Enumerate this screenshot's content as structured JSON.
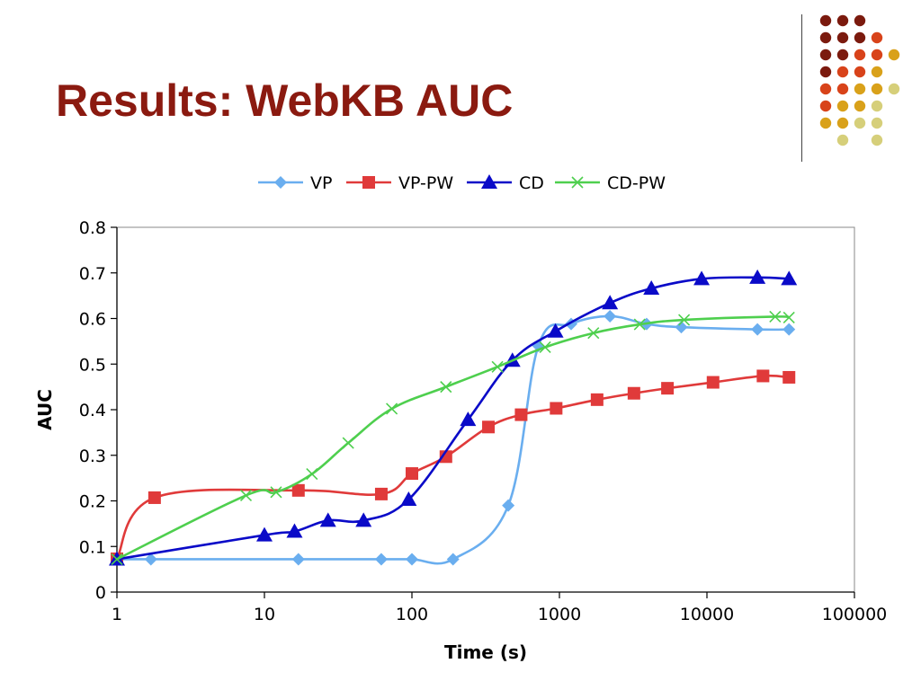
{
  "slide": {
    "title": "Results: WebKB AUC"
  },
  "decoration": {
    "dot_rows": [
      [
        "#7b1a0e",
        "#7b1a0e",
        "#7b1a0e"
      ],
      [
        "#7b1a0e",
        "#7b1a0e",
        "#7b1a0e",
        "#d8431a"
      ],
      [
        "#7b1a0e",
        "#7b1a0e",
        "#d8431a",
        "#d8431a",
        "#d9a11a"
      ],
      [
        "#7b1a0e",
        "#d8431a",
        "#d8431a",
        "#d9a11a"
      ],
      [
        "#d8431a",
        "#d8431a",
        "#d9a11a",
        "#d9a11a",
        "#d6cf7a"
      ],
      [
        "#d8431a",
        "#d9a11a",
        "#d9a11a",
        "#d6cf7a"
      ],
      [
        "#d9a11a",
        "#d9a11a",
        "#d6cf7a",
        "#d6cf7a"
      ],
      [
        "#d6cf7a",
        "#d6cf7a"
      ]
    ]
  },
  "chart_data": {
    "type": "line",
    "title": "",
    "xlabel": "Time (s)",
    "ylabel": "AUC",
    "xscale": "log",
    "xlim": [
      1,
      100000
    ],
    "ylim": [
      0,
      0.8
    ],
    "x_ticks": [
      1,
      10,
      100,
      1000,
      10000,
      100000
    ],
    "x_tick_labels": [
      "1",
      "10",
      "100",
      "1000",
      "10000",
      "100000"
    ],
    "y_ticks": [
      0,
      0.1,
      0.2,
      0.3,
      0.4,
      0.5,
      0.6,
      0.7,
      0.8
    ],
    "y_tick_labels": [
      "0",
      "0.1",
      "0.2",
      "0.3",
      "0.4",
      "0.5",
      "0.6",
      "0.7",
      "0.8"
    ],
    "grid": false,
    "legend_position": "top",
    "series": [
      {
        "name": "VP",
        "color": "#6aaeef",
        "marker": "diamond",
        "points": [
          [
            1,
            0.072
          ],
          [
            1.7,
            0.072
          ],
          [
            17,
            0.072
          ],
          [
            62,
            0.072
          ],
          [
            100,
            0.072
          ],
          [
            190,
            0.072
          ],
          [
            450,
            0.19
          ],
          [
            720,
            0.54
          ],
          [
            1200,
            0.588
          ],
          [
            2200,
            0.605
          ],
          [
            3900,
            0.588
          ],
          [
            6700,
            0.581
          ],
          [
            22000,
            0.576
          ],
          [
            36000,
            0.576
          ]
        ]
      },
      {
        "name": "VP-PW",
        "color": "#e03a3a",
        "marker": "square",
        "points": [
          [
            1,
            0.073
          ],
          [
            1.8,
            0.207
          ],
          [
            17,
            0.223
          ],
          [
            62,
            0.215
          ],
          [
            100,
            0.26
          ],
          [
            170,
            0.297
          ],
          [
            330,
            0.362
          ],
          [
            550,
            0.389
          ],
          [
            950,
            0.403
          ],
          [
            1800,
            0.422
          ],
          [
            3200,
            0.436
          ],
          [
            5400,
            0.447
          ],
          [
            11000,
            0.46
          ],
          [
            24000,
            0.474
          ],
          [
            36000,
            0.471
          ]
        ]
      },
      {
        "name": "CD",
        "color": "#0a0ac8",
        "marker": "triangle",
        "points": [
          [
            1,
            0.072
          ],
          [
            10,
            0.125
          ],
          [
            16,
            0.133
          ],
          [
            27,
            0.157
          ],
          [
            47,
            0.157
          ],
          [
            95,
            0.203
          ],
          [
            240,
            0.378
          ],
          [
            480,
            0.508
          ],
          [
            940,
            0.572
          ],
          [
            2200,
            0.634
          ],
          [
            4200,
            0.666
          ],
          [
            9200,
            0.687
          ],
          [
            22000,
            0.69
          ],
          [
            36000,
            0.687
          ]
        ]
      },
      {
        "name": "CD-PW",
        "color": "#4ecf4e",
        "marker": "x",
        "points": [
          [
            1,
            0.072
          ],
          [
            7.5,
            0.212
          ],
          [
            12,
            0.219
          ],
          [
            21,
            0.259
          ],
          [
            37,
            0.327
          ],
          [
            73,
            0.402
          ],
          [
            170,
            0.45
          ],
          [
            380,
            0.494
          ],
          [
            800,
            0.537
          ],
          [
            1700,
            0.568
          ],
          [
            3500,
            0.587
          ],
          [
            7000,
            0.597
          ],
          [
            29000,
            0.604
          ],
          [
            36000,
            0.602
          ]
        ]
      }
    ]
  }
}
